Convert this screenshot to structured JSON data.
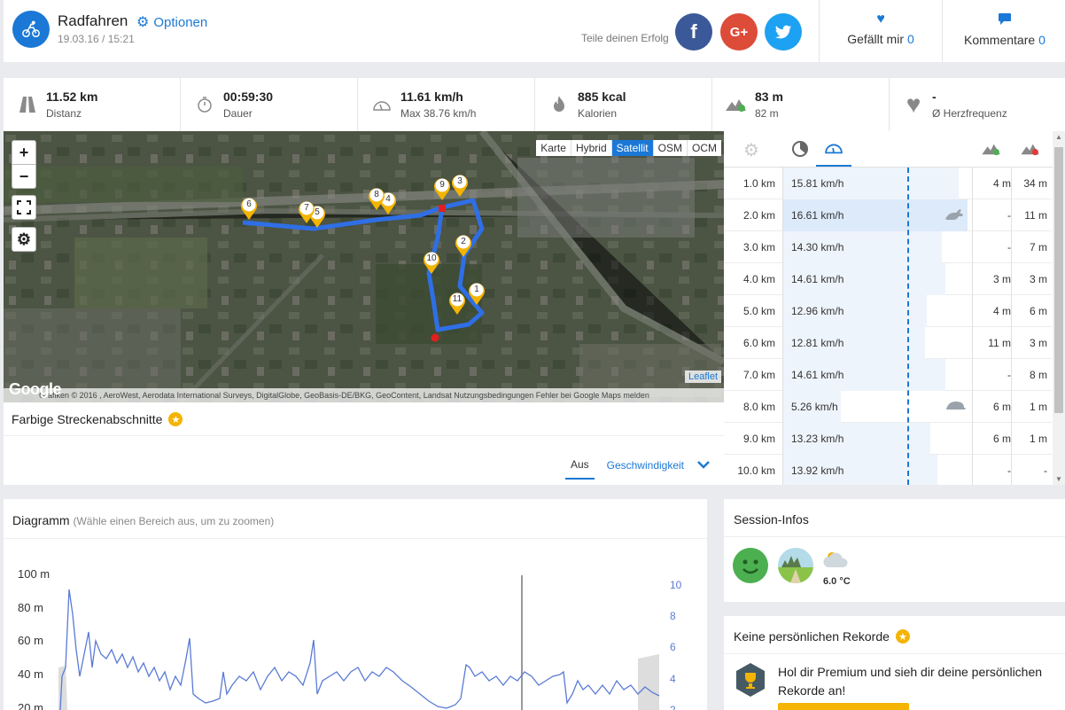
{
  "header": {
    "title": "Radfahren",
    "date": "19.03.16 / 15:21",
    "options_label": "Optionen",
    "share_label": "Teile deinen Erfolg",
    "likes_label": "Gefällt mir",
    "likes_count": "0",
    "comments_label": "Kommentare",
    "comments_count": "0"
  },
  "stats": [
    {
      "icon": "road-icon",
      "value": "11.52 km",
      "sub": "Distanz"
    },
    {
      "icon": "stopwatch-icon",
      "value": "00:59:30",
      "sub": "Dauer"
    },
    {
      "icon": "speedometer-icon",
      "value": "11.61 km/h",
      "sub": "Max 38.76 km/h"
    },
    {
      "icon": "flame-icon",
      "value": "885 kcal",
      "sub": "Kalorien"
    },
    {
      "icon": "elevation-icon",
      "value": "83 m",
      "sub": "82 m"
    },
    {
      "icon": "heart-icon",
      "value": "-",
      "sub": "Ø Herzfrequenz"
    }
  ],
  "map": {
    "zoom_in": "+",
    "zoom_out": "−",
    "layers": [
      "Karte",
      "Hybrid",
      "Satellit",
      "OSM",
      "OCM"
    ],
    "active_layer": "Satellit",
    "attribution": "Grafiken © 2016 , AeroWest, Aerodata International Surveys, DigitalGlobe, GeoBasis-DE/BKG, GeoContent, Landsat   Nutzungsbedingungen   Fehler bei Google Maps melden",
    "google": "Google",
    "leaflet": "Leaflet",
    "markers": [
      "1",
      "2",
      "3",
      "4",
      "5",
      "6",
      "7",
      "8",
      "9",
      "10",
      "11"
    ]
  },
  "sections": {
    "title": "Farbige Streckenabschnitte",
    "tab_off": "Aus",
    "tab_speed": "Geschwindigkeit"
  },
  "splits": [
    {
      "km": "1.0 km",
      "speed": "15.81 km/h",
      "speed_value": 15.81,
      "up": "4 m",
      "down": "34 m",
      "badge": ""
    },
    {
      "km": "2.0 km",
      "speed": "16.61 km/h",
      "speed_value": 16.61,
      "up": "-",
      "down": "11 m",
      "badge": "rabbit-icon"
    },
    {
      "km": "3.0 km",
      "speed": "14.30 km/h",
      "speed_value": 14.3,
      "up": "-",
      "down": "7 m",
      "badge": ""
    },
    {
      "km": "4.0 km",
      "speed": "14.61 km/h",
      "speed_value": 14.61,
      "up": "3 m",
      "down": "3 m",
      "badge": ""
    },
    {
      "km": "5.0 km",
      "speed": "12.96 km/h",
      "speed_value": 12.96,
      "up": "4 m",
      "down": "6 m",
      "badge": ""
    },
    {
      "km": "6.0 km",
      "speed": "12.81 km/h",
      "speed_value": 12.81,
      "up": "11 m",
      "down": "3 m",
      "badge": ""
    },
    {
      "km": "7.0 km",
      "speed": "14.61 km/h",
      "speed_value": 14.61,
      "up": "-",
      "down": "8 m",
      "badge": ""
    },
    {
      "km": "8.0 km",
      "speed": "5.26 km/h",
      "speed_value": 5.26,
      "up": "6 m",
      "down": "1 m",
      "badge": "turtle-icon"
    },
    {
      "km": "9.0 km",
      "speed": "13.23 km/h",
      "speed_value": 13.23,
      "up": "6 m",
      "down": "1 m",
      "badge": ""
    },
    {
      "km": "10.0 km",
      "speed": "13.92 km/h",
      "speed_value": 13.92,
      "up": "-",
      "down": "-",
      "badge": ""
    }
  ],
  "diagram": {
    "title": "Diagramm",
    "hint": "(Wähle einen Bereich aus, um zu zoomen)",
    "y_labels": [
      "100 m",
      "80 m",
      "60 m",
      "40 m",
      "20 m"
    ],
    "y2_labels": [
      "10",
      "8",
      "6",
      "4",
      "2"
    ]
  },
  "session": {
    "title": "Session-Infos",
    "temperature": "6.0 °C"
  },
  "records": {
    "title": "Keine persönlichen Rekorde",
    "text": "Hol dir Premium und sieh dir deine persönlichen Rekorde an!"
  },
  "colors": {
    "accent": "#1b78d6",
    "facebook": "#3b5998",
    "google": "#dd4b39",
    "twitter": "#1da1f2",
    "route": "#2f6fe6",
    "marker": "#f4b400",
    "premium": "#f4b400"
  }
}
